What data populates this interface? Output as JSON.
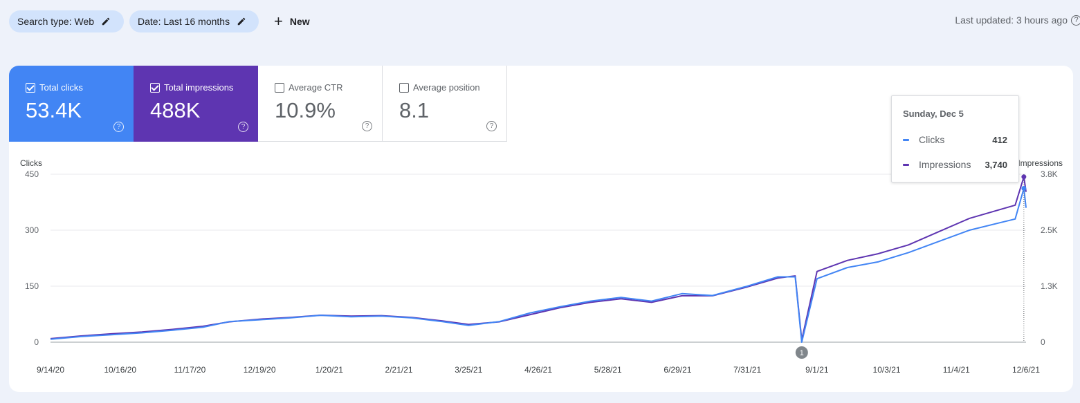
{
  "filters": {
    "search_type": "Search type: Web",
    "date": "Date: Last 16 months",
    "new_label": "New"
  },
  "last_updated": "Last updated: 3 hours ago",
  "metrics": [
    {
      "label": "Total clicks",
      "value": "53.4K",
      "checked": true,
      "color": "#4285f4"
    },
    {
      "label": "Total impressions",
      "value": "488K",
      "checked": true,
      "color": "#5e35b1"
    },
    {
      "label": "Average CTR",
      "value": "10.9%",
      "checked": false
    },
    {
      "label": "Average position",
      "value": "8.1",
      "checked": false
    }
  ],
  "tooltip": {
    "date": "Sunday, Dec 5",
    "rows": [
      {
        "name": "Clicks",
        "value": "412",
        "color": "#4285f4"
      },
      {
        "name": "Impressions",
        "value": "3,740",
        "color": "#5e35b1"
      }
    ]
  },
  "annotation_marker": "1",
  "chart_data": {
    "type": "line",
    "left_axis_label": "Clicks",
    "right_axis_label": "Impressions",
    "left_ticks": [
      "0",
      "150",
      "300",
      "450"
    ],
    "right_ticks": [
      "0",
      "1.3K",
      "2.5K",
      "3.8K"
    ],
    "ylim_left": [
      0,
      450
    ],
    "ylim_right": [
      0,
      3800
    ],
    "x_tick_labels": [
      "9/14/20",
      "10/16/20",
      "11/17/20",
      "12/19/20",
      "1/20/21",
      "2/21/21",
      "3/25/21",
      "4/26/21",
      "5/28/21",
      "6/29/21",
      "7/31/21",
      "9/1/21",
      "10/3/21",
      "11/4/21",
      "12/6/21"
    ],
    "x_range": [
      "2020-09-14",
      "2021-12-06"
    ],
    "grid": true,
    "series": [
      {
        "name": "Clicks",
        "axis": "left",
        "color": "#4285f4",
        "x": [
          "2020-09-14",
          "2020-09-28",
          "2020-10-12",
          "2020-10-26",
          "2020-11-09",
          "2020-11-23",
          "2020-12-05",
          "2020-12-19",
          "2021-01-02",
          "2021-01-16",
          "2021-01-30",
          "2021-02-13",
          "2021-02-27",
          "2021-03-13",
          "2021-03-25",
          "2021-04-08",
          "2021-04-22",
          "2021-05-06",
          "2021-05-20",
          "2021-06-03",
          "2021-06-17",
          "2021-07-01",
          "2021-07-15",
          "2021-07-31",
          "2021-08-14",
          "2021-08-22",
          "2021-08-25",
          "2021-09-01",
          "2021-09-15",
          "2021-09-29",
          "2021-10-13",
          "2021-10-27",
          "2021-11-10",
          "2021-11-24",
          "2021-12-01",
          "2021-12-05",
          "2021-12-06"
        ],
        "values": [
          8,
          15,
          20,
          25,
          32,
          40,
          55,
          60,
          65,
          72,
          68,
          70,
          65,
          55,
          45,
          55,
          78,
          95,
          110,
          120,
          110,
          130,
          125,
          150,
          175,
          175,
          0,
          170,
          200,
          215,
          240,
          270,
          300,
          320,
          330,
          412,
          360
        ]
      },
      {
        "name": "Impressions",
        "axis": "right",
        "color": "#5e35b1",
        "x": [
          "2020-09-14",
          "2020-09-28",
          "2020-10-12",
          "2020-10-26",
          "2020-11-09",
          "2020-11-23",
          "2020-12-05",
          "2020-12-19",
          "2021-01-02",
          "2021-01-16",
          "2021-01-30",
          "2021-02-13",
          "2021-02-27",
          "2021-03-13",
          "2021-03-25",
          "2021-04-08",
          "2021-04-22",
          "2021-05-06",
          "2021-05-20",
          "2021-06-03",
          "2021-06-17",
          "2021-07-01",
          "2021-07-15",
          "2021-07-31",
          "2021-08-14",
          "2021-08-22",
          "2021-08-25",
          "2021-09-01",
          "2021-09-15",
          "2021-09-29",
          "2021-10-13",
          "2021-10-27",
          "2021-11-10",
          "2021-11-24",
          "2021-12-01",
          "2021-12-05",
          "2021-12-06"
        ],
        "values": [
          80,
          140,
          190,
          230,
          290,
          360,
          460,
          520,
          560,
          610,
          590,
          600,
          560,
          480,
          400,
          460,
          620,
          780,
          900,
          980,
          900,
          1050,
          1050,
          1250,
          1450,
          1500,
          50,
          1600,
          1850,
          2000,
          2200,
          2500,
          2800,
          3000,
          3100,
          3740,
          3400
        ]
      }
    ]
  }
}
